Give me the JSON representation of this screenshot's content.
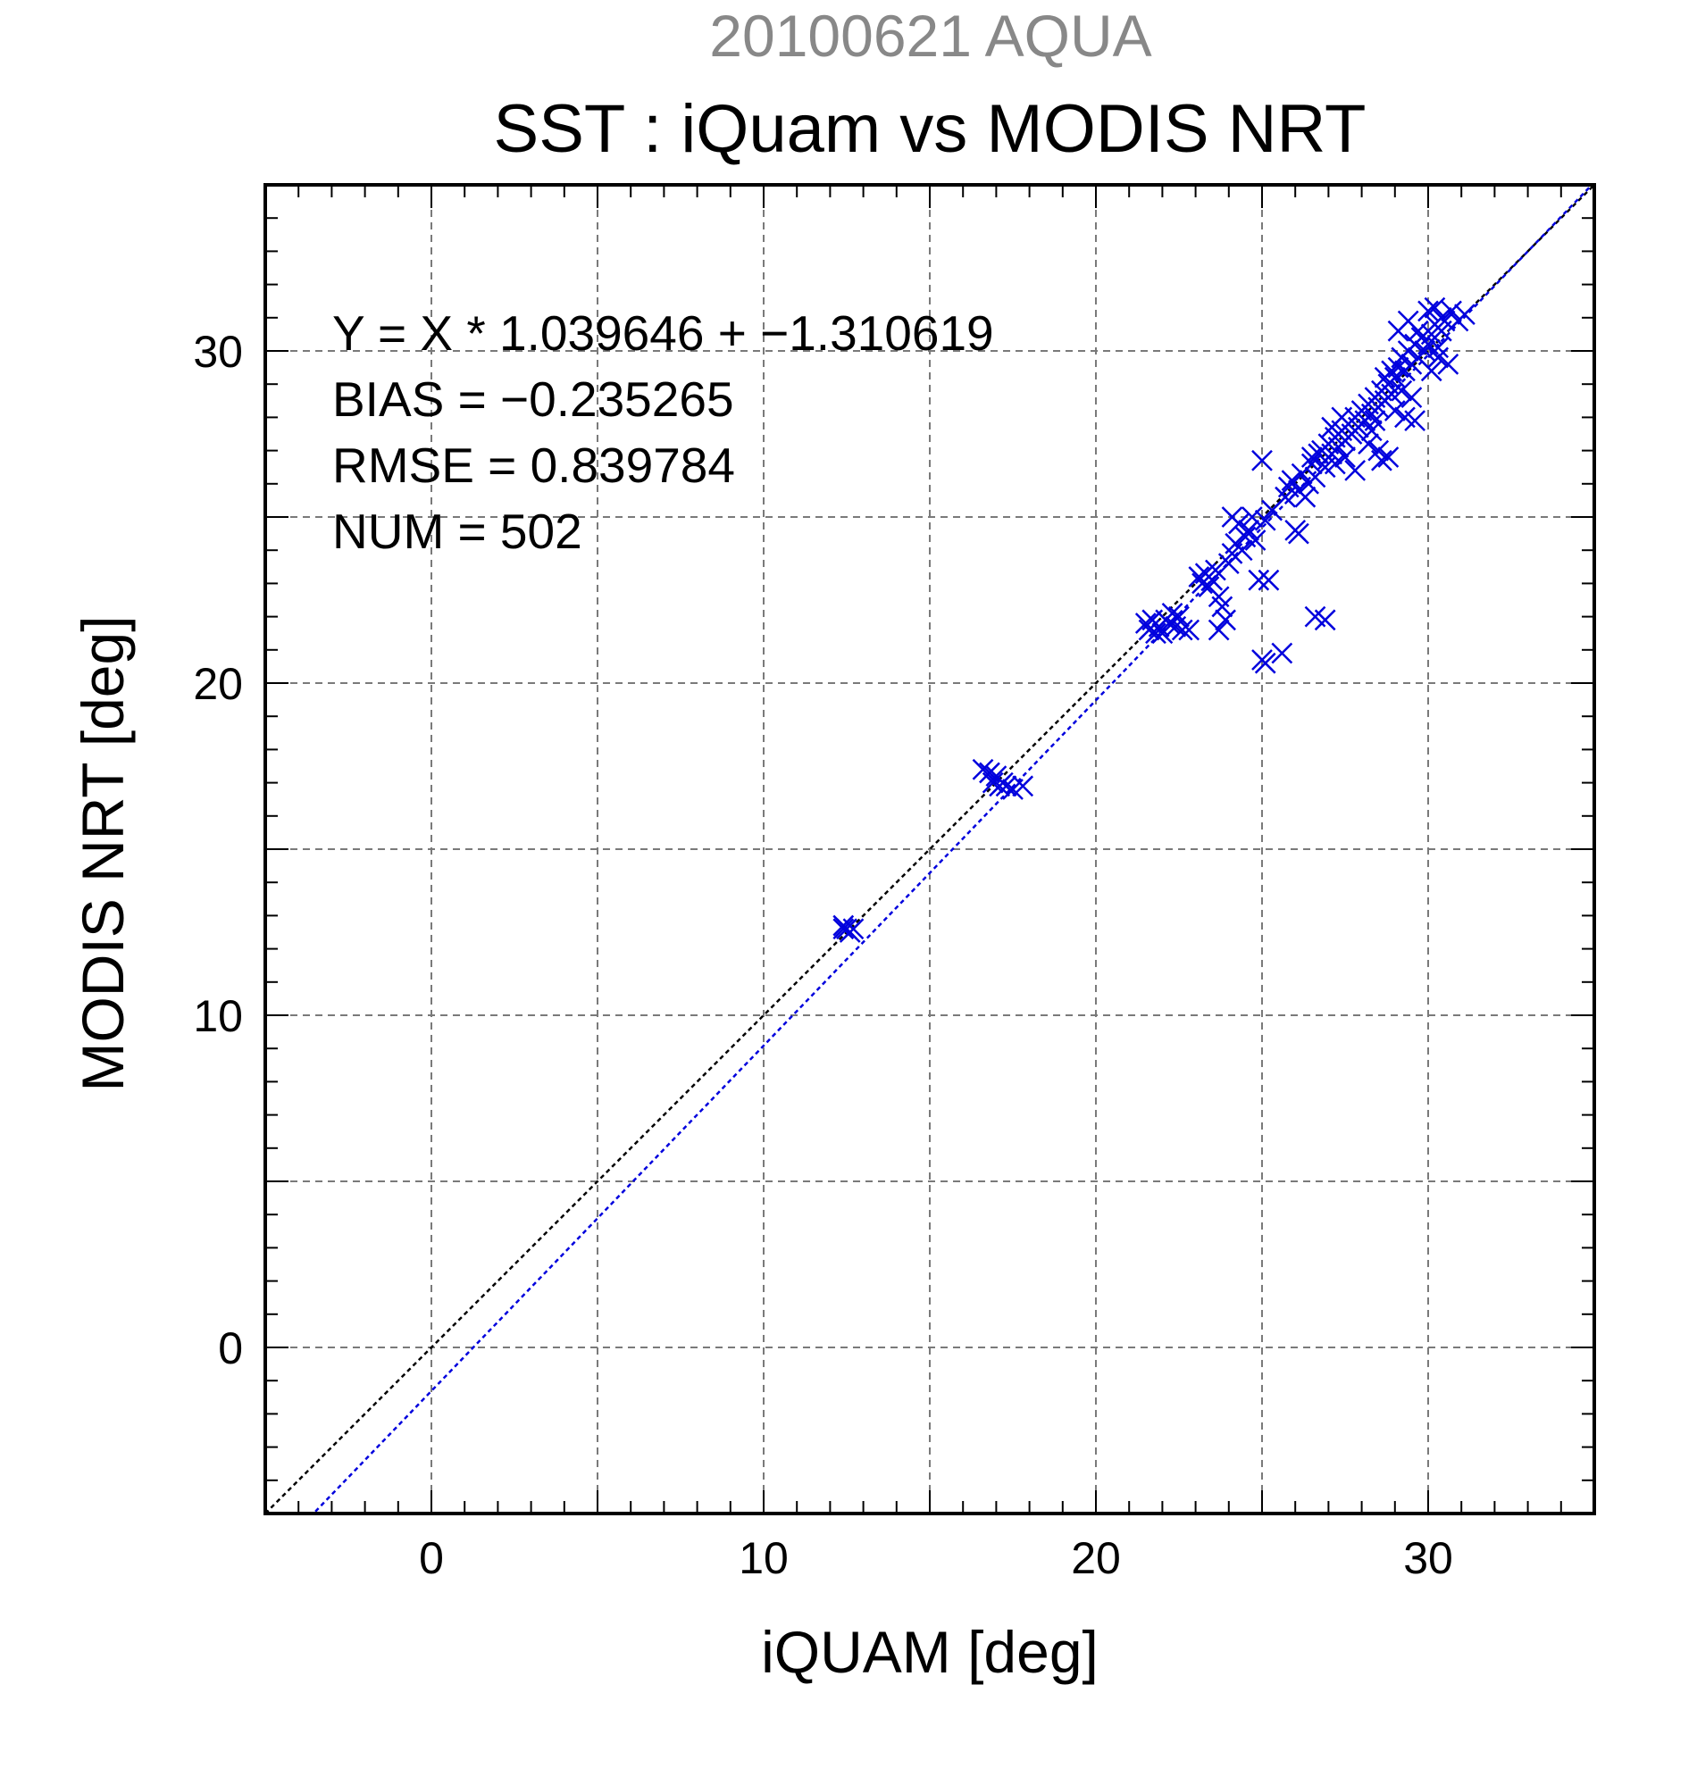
{
  "chart_data": {
    "type": "scatter",
    "subtitle": "20100621 AQUA",
    "title": "SST : iQuam vs MODIS NRT",
    "xlabel": "iQUAM [deg]",
    "ylabel": "MODIS NRT [deg]",
    "xlim": [
      -5,
      35
    ],
    "ylim": [
      -5,
      35
    ],
    "xticks": [
      0,
      10,
      20,
      30
    ],
    "yticks": [
      0,
      10,
      20,
      30
    ],
    "xtick_labels": [
      "0",
      "10",
      "20",
      "30"
    ],
    "ytick_labels": [
      "0",
      "10",
      "20",
      "30"
    ],
    "grid": true,
    "annotations": [
      "Y = X * 1.039646 + −1.310619",
      "BIAS = −0.235265",
      "RMSE = 0.839784",
      "NUM = 502"
    ],
    "fit": {
      "slope": 1.039646,
      "intercept": -1.310619
    },
    "series": [
      {
        "marker": "x",
        "color": "#0000dd",
        "points": [
          [
            12.4,
            12.6
          ],
          [
            12.5,
            12.6
          ],
          [
            12.6,
            12.5
          ],
          [
            12.4,
            12.7
          ],
          [
            12.7,
            12.6
          ],
          [
            16.6,
            17.4
          ],
          [
            16.8,
            17.3
          ],
          [
            17.0,
            17.2
          ],
          [
            16.9,
            17.0
          ],
          [
            17.1,
            16.9
          ],
          [
            17.3,
            16.9
          ],
          [
            17.5,
            16.8
          ],
          [
            17.8,
            16.9
          ],
          [
            17.2,
            17.0
          ],
          [
            21.5,
            21.8
          ],
          [
            21.7,
            21.9
          ],
          [
            21.9,
            21.7
          ],
          [
            21.6,
            21.6
          ],
          [
            21.8,
            21.5
          ],
          [
            22.1,
            21.9
          ],
          [
            22.3,
            22.1
          ],
          [
            22.0,
            21.5
          ],
          [
            22.4,
            21.7
          ],
          [
            22.6,
            21.6
          ],
          [
            22.5,
            22.0
          ],
          [
            22.8,
            21.6
          ],
          [
            22.2,
            21.8
          ],
          [
            23.1,
            23.2
          ],
          [
            23.3,
            23.3
          ],
          [
            23.5,
            23.1
          ],
          [
            23.6,
            23.4
          ],
          [
            23.4,
            22.9
          ],
          [
            23.7,
            22.6
          ],
          [
            23.8,
            22.3
          ],
          [
            23.9,
            21.9
          ],
          [
            23.7,
            21.6
          ],
          [
            23.2,
            23.0
          ],
          [
            24.0,
            23.6
          ],
          [
            24.1,
            23.9
          ],
          [
            24.2,
            24.2
          ],
          [
            24.1,
            25.0
          ],
          [
            24.3,
            24.8
          ],
          [
            24.5,
            24.4
          ],
          [
            24.6,
            24.6
          ],
          [
            24.7,
            25.0
          ],
          [
            24.8,
            24.3
          ],
          [
            24.4,
            24.0
          ],
          [
            24.9,
            23.1
          ],
          [
            25.2,
            23.1
          ],
          [
            25.0,
            26.7
          ],
          [
            25.1,
            24.9
          ],
          [
            25.3,
            25.2
          ],
          [
            25.0,
            20.7
          ],
          [
            25.1,
            20.6
          ],
          [
            25.6,
            20.9
          ],
          [
            25.7,
            25.6
          ],
          [
            25.8,
            25.9
          ],
          [
            25.9,
            26.1
          ],
          [
            26.0,
            24.6
          ],
          [
            26.1,
            24.5
          ],
          [
            26.1,
            25.8
          ],
          [
            26.2,
            26.3
          ],
          [
            26.3,
            25.6
          ],
          [
            26.4,
            26.0
          ],
          [
            26.5,
            26.6
          ],
          [
            26.6,
            26.2
          ],
          [
            26.7,
            26.9
          ],
          [
            26.8,
            27.0
          ],
          [
            26.9,
            26.5
          ],
          [
            26.6,
            22.0
          ],
          [
            26.9,
            21.9
          ],
          [
            26.5,
            26.8
          ],
          [
            27.0,
            27.2
          ],
          [
            27.1,
            26.9
          ],
          [
            27.2,
            27.4
          ],
          [
            27.3,
            27.1
          ],
          [
            27.4,
            27.6
          ],
          [
            27.5,
            27.3
          ],
          [
            27.6,
            27.8
          ],
          [
            27.7,
            27.5
          ],
          [
            27.8,
            28.0
          ],
          [
            27.9,
            27.7
          ],
          [
            27.2,
            26.6
          ],
          [
            27.5,
            26.8
          ],
          [
            27.8,
            26.4
          ],
          [
            27.1,
            27.7
          ],
          [
            27.4,
            28.0
          ],
          [
            28.0,
            28.2
          ],
          [
            28.1,
            27.9
          ],
          [
            28.2,
            28.4
          ],
          [
            28.3,
            28.1
          ],
          [
            28.4,
            28.6
          ],
          [
            28.5,
            28.3
          ],
          [
            28.6,
            28.8
          ],
          [
            28.7,
            28.5
          ],
          [
            28.8,
            29.0
          ],
          [
            28.9,
            28.7
          ],
          [
            28.2,
            27.2
          ],
          [
            28.5,
            27.0
          ],
          [
            28.8,
            26.8
          ],
          [
            28.6,
            26.7
          ],
          [
            28.3,
            27.6
          ],
          [
            28.7,
            29.2
          ],
          [
            28.9,
            29.4
          ],
          [
            28.4,
            27.9
          ],
          [
            29.0,
            29.2
          ],
          [
            29.1,
            29.5
          ],
          [
            29.2,
            29.8
          ],
          [
            29.3,
            29.4
          ],
          [
            29.4,
            30.0
          ],
          [
            29.5,
            29.6
          ],
          [
            29.6,
            30.2
          ],
          [
            29.7,
            29.8
          ],
          [
            29.8,
            30.4
          ],
          [
            29.9,
            30.0
          ],
          [
            29.2,
            28.8
          ],
          [
            29.5,
            28.6
          ],
          [
            29.0,
            28.2
          ],
          [
            29.3,
            28.0
          ],
          [
            29.6,
            27.9
          ],
          [
            29.1,
            30.6
          ],
          [
            29.4,
            30.9
          ],
          [
            29.7,
            30.6
          ],
          [
            30.0,
            30.2
          ],
          [
            30.1,
            30.5
          ],
          [
            30.2,
            30.8
          ],
          [
            30.3,
            30.1
          ],
          [
            30.4,
            30.6
          ],
          [
            30.5,
            30.9
          ],
          [
            30.0,
            31.2
          ],
          [
            30.2,
            31.3
          ],
          [
            30.4,
            31.0
          ],
          [
            30.7,
            31.2
          ],
          [
            30.9,
            30.9
          ],
          [
            31.1,
            31.1
          ],
          [
            30.3,
            29.8
          ],
          [
            30.6,
            29.6
          ],
          [
            30.1,
            29.4
          ]
        ]
      }
    ]
  }
}
